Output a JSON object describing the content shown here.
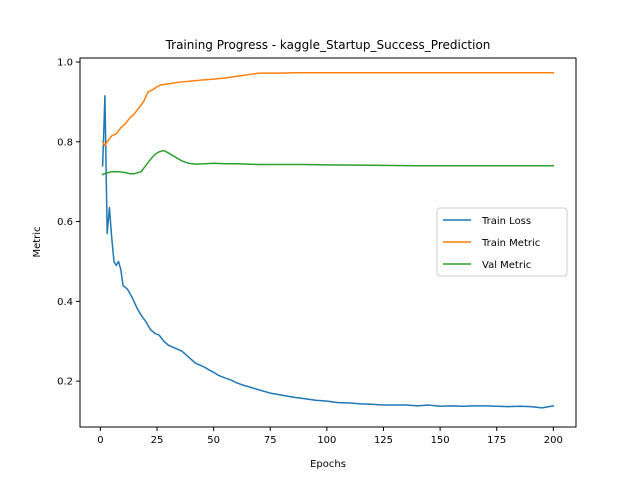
{
  "chart_data": {
    "type": "line",
    "title": "Training Progress - kaggle_Startup_Success_Prediction",
    "xlabel": "Epochs",
    "ylabel": "Metric",
    "xlim": [
      -9,
      210
    ],
    "ylim": [
      0.085,
      1.01
    ],
    "xticks": [
      0,
      25,
      50,
      75,
      100,
      125,
      150,
      175,
      200
    ],
    "yticks": [
      0.2,
      0.4,
      0.6,
      0.8,
      1.0
    ],
    "ytick_labels": [
      "0.2",
      "0.4",
      "0.6",
      "0.8",
      "1.0"
    ],
    "grid": false,
    "legend": "center-right",
    "series": [
      {
        "name": "Train Loss",
        "color": "#1f77b4",
        "points": [
          [
            1,
            0.74
          ],
          [
            2,
            0.915
          ],
          [
            3,
            0.57
          ],
          [
            4,
            0.635
          ],
          [
            5,
            0.56
          ],
          [
            6,
            0.5
          ],
          [
            7,
            0.49
          ],
          [
            8,
            0.5
          ],
          [
            9,
            0.48
          ],
          [
            10,
            0.44
          ],
          [
            12,
            0.43
          ],
          [
            14,
            0.41
          ],
          [
            16,
            0.385
          ],
          [
            18,
            0.365
          ],
          [
            20,
            0.35
          ],
          [
            22,
            0.33
          ],
          [
            24,
            0.32
          ],
          [
            26,
            0.315
          ],
          [
            28,
            0.3
          ],
          [
            30,
            0.29
          ],
          [
            32,
            0.285
          ],
          [
            34,
            0.28
          ],
          [
            36,
            0.275
          ],
          [
            38,
            0.265
          ],
          [
            40,
            0.255
          ],
          [
            42,
            0.245
          ],
          [
            44,
            0.24
          ],
          [
            46,
            0.235
          ],
          [
            48,
            0.228
          ],
          [
            50,
            0.222
          ],
          [
            52,
            0.215
          ],
          [
            55,
            0.208
          ],
          [
            58,
            0.202
          ],
          [
            60,
            0.196
          ],
          [
            63,
            0.19
          ],
          [
            66,
            0.185
          ],
          [
            70,
            0.178
          ],
          [
            75,
            0.17
          ],
          [
            80,
            0.165
          ],
          [
            85,
            0.16
          ],
          [
            90,
            0.156
          ],
          [
            95,
            0.152
          ],
          [
            100,
            0.15
          ],
          [
            105,
            0.146
          ],
          [
            110,
            0.145
          ],
          [
            115,
            0.143
          ],
          [
            120,
            0.142
          ],
          [
            125,
            0.14
          ],
          [
            130,
            0.14
          ],
          [
            135,
            0.14
          ],
          [
            140,
            0.138
          ],
          [
            145,
            0.14
          ],
          [
            150,
            0.137
          ],
          [
            155,
            0.138
          ],
          [
            160,
            0.137
          ],
          [
            165,
            0.138
          ],
          [
            170,
            0.138
          ],
          [
            175,
            0.137
          ],
          [
            180,
            0.136
          ],
          [
            185,
            0.137
          ],
          [
            190,
            0.136
          ],
          [
            195,
            0.133
          ],
          [
            200,
            0.138
          ]
        ]
      },
      {
        "name": "Train Metric",
        "color": "#ff7f0e",
        "points": [
          [
            1,
            0.8
          ],
          [
            2,
            0.79
          ],
          [
            3,
            0.8
          ],
          [
            5,
            0.815
          ],
          [
            7,
            0.82
          ],
          [
            9,
            0.835
          ],
          [
            11,
            0.845
          ],
          [
            13,
            0.86
          ],
          [
            15,
            0.87
          ],
          [
            17,
            0.885
          ],
          [
            19,
            0.9
          ],
          [
            21,
            0.925
          ],
          [
            23,
            0.93
          ],
          [
            25,
            0.938
          ],
          [
            27,
            0.943
          ],
          [
            30,
            0.945
          ],
          [
            33,
            0.948
          ],
          [
            36,
            0.95
          ],
          [
            40,
            0.952
          ],
          [
            45,
            0.955
          ],
          [
            50,
            0.957
          ],
          [
            55,
            0.96
          ],
          [
            60,
            0.964
          ],
          [
            65,
            0.968
          ],
          [
            70,
            0.972
          ],
          [
            75,
            0.972
          ],
          [
            80,
            0.972
          ],
          [
            85,
            0.973
          ],
          [
            90,
            0.973
          ],
          [
            100,
            0.973
          ],
          [
            120,
            0.973
          ],
          [
            140,
            0.973
          ],
          [
            160,
            0.973
          ],
          [
            180,
            0.973
          ],
          [
            200,
            0.973
          ]
        ]
      },
      {
        "name": "Val Metric",
        "color": "#2ca02c",
        "points": [
          [
            1,
            0.718
          ],
          [
            3,
            0.722
          ],
          [
            5,
            0.725
          ],
          [
            8,
            0.725
          ],
          [
            11,
            0.723
          ],
          [
            13,
            0.72
          ],
          [
            15,
            0.72
          ],
          [
            18,
            0.725
          ],
          [
            20,
            0.74
          ],
          [
            22,
            0.755
          ],
          [
            24,
            0.768
          ],
          [
            26,
            0.775
          ],
          [
            28,
            0.778
          ],
          [
            30,
            0.772
          ],
          [
            33,
            0.762
          ],
          [
            36,
            0.752
          ],
          [
            39,
            0.746
          ],
          [
            42,
            0.744
          ],
          [
            46,
            0.745
          ],
          [
            50,
            0.746
          ],
          [
            55,
            0.745
          ],
          [
            60,
            0.745
          ],
          [
            70,
            0.743
          ],
          [
            80,
            0.743
          ],
          [
            90,
            0.743
          ],
          [
            100,
            0.742
          ],
          [
            120,
            0.741
          ],
          [
            140,
            0.74
          ],
          [
            160,
            0.74
          ],
          [
            180,
            0.74
          ],
          [
            200,
            0.74
          ]
        ]
      }
    ]
  }
}
